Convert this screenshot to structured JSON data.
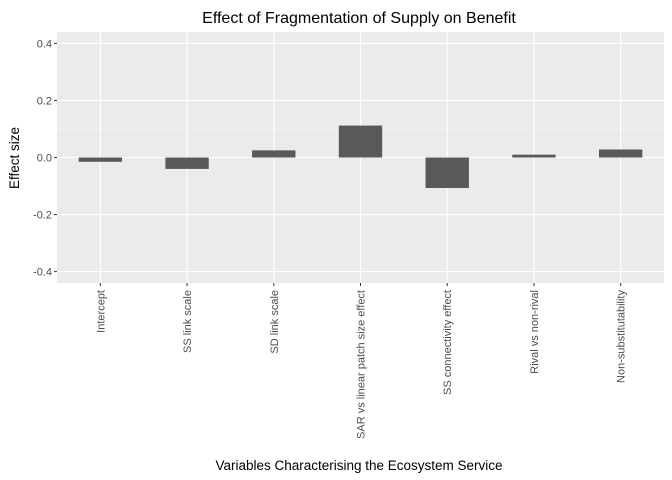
{
  "chart_data": {
    "type": "bar",
    "title": "Effect of Fragmentation of Supply on Benefit",
    "xlabel": "Variables Characterising the Ecosystem Service",
    "ylabel": "Effect size",
    "categories": [
      "Intercept",
      "SS link scale",
      "SD link scale",
      "SAR vs linear patch size effect",
      "SS connectivity effect",
      "Rival vs non-rival",
      "Non-substitutability"
    ],
    "values": [
      -0.015,
      -0.04,
      0.025,
      0.112,
      -0.107,
      0.01,
      0.028
    ],
    "ylim": [
      -0.44,
      0.44
    ],
    "yticks": [
      -0.4,
      -0.2,
      0.0,
      0.2,
      0.4
    ],
    "ytick_labels": [
      "-0.4",
      "-0.2",
      "0.0",
      "0.2",
      "0.4"
    ],
    "grid": true,
    "legend": "none",
    "colors": {
      "bar": "#595959",
      "panel": "#ebebeb",
      "grid_major": "#ffffff",
      "grid_minor": "#f5f5f5",
      "text": "#000000",
      "tick_text": "#4d4d4d"
    }
  }
}
